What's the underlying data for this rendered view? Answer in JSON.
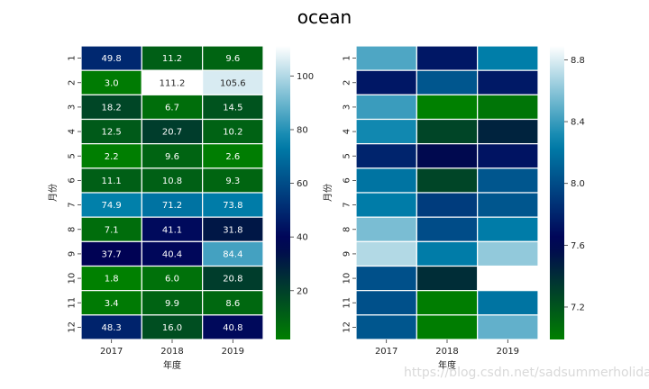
{
  "figure": {
    "title": "ocean",
    "watermark": "https://blog.csdn.net/sadsummerholiday"
  },
  "chart_data": [
    {
      "type": "heatmap",
      "title": "",
      "colormap": "ocean",
      "annotated": true,
      "xlabel": "年度",
      "ylabel": "月份",
      "x_categories": [
        "2017",
        "2018",
        "2019"
      ],
      "y_categories": [
        "1",
        "2",
        "3",
        "4",
        "5",
        "6",
        "7",
        "8",
        "9",
        "10",
        "11",
        "12"
      ],
      "values": [
        [
          49.8,
          11.2,
          9.6
        ],
        [
          3.0,
          111.2,
          105.6
        ],
        [
          18.2,
          6.7,
          14.5
        ],
        [
          12.5,
          20.7,
          10.2
        ],
        [
          2.2,
          9.6,
          2.6
        ],
        [
          11.1,
          10.8,
          9.3
        ],
        [
          74.9,
          71.2,
          73.8
        ],
        [
          7.1,
          41.1,
          31.8
        ],
        [
          37.7,
          40.4,
          84.4
        ],
        [
          1.8,
          6.0,
          20.8
        ],
        [
          3.4,
          9.9,
          8.6
        ],
        [
          48.3,
          16.0,
          40.8
        ]
      ],
      "colorbar": {
        "vmin": 1.8,
        "vmax": 111.2,
        "ticks": [
          "20",
          "40",
          "60",
          "80",
          "100"
        ]
      }
    },
    {
      "type": "heatmap",
      "title": "",
      "colormap": "ocean",
      "annotated": false,
      "xlabel": "年度",
      "ylabel": "月份",
      "x_categories": [
        "2017",
        "2018",
        "2019"
      ],
      "y_categories": [
        "1",
        "2",
        "3",
        "4",
        "5",
        "6",
        "7",
        "8",
        "9",
        "10",
        "11",
        "12"
      ],
      "values": [
        [
          8.45,
          7.74,
          8.25
        ],
        [
          7.74,
          8.05,
          7.75
        ],
        [
          8.4,
          6.99,
          7.04
        ],
        [
          8.3,
          7.28,
          7.45
        ],
        [
          7.8,
          7.58,
          7.72
        ],
        [
          8.2,
          7.28,
          8.05
        ],
        [
          8.24,
          7.92,
          8.05
        ],
        [
          8.56,
          8.0,
          8.24
        ],
        [
          8.7,
          8.24,
          8.62
        ],
        [
          8.02,
          7.4,
          null
        ],
        [
          8.02,
          7.0,
          8.2
        ],
        [
          8.05,
          7.0,
          8.5
        ]
      ],
      "colorbar": {
        "vmin": 6.99,
        "vmax": 8.89,
        "ticks": [
          "7.2",
          "7.6",
          "8.0",
          "8.4",
          "8.8"
        ]
      }
    }
  ]
}
